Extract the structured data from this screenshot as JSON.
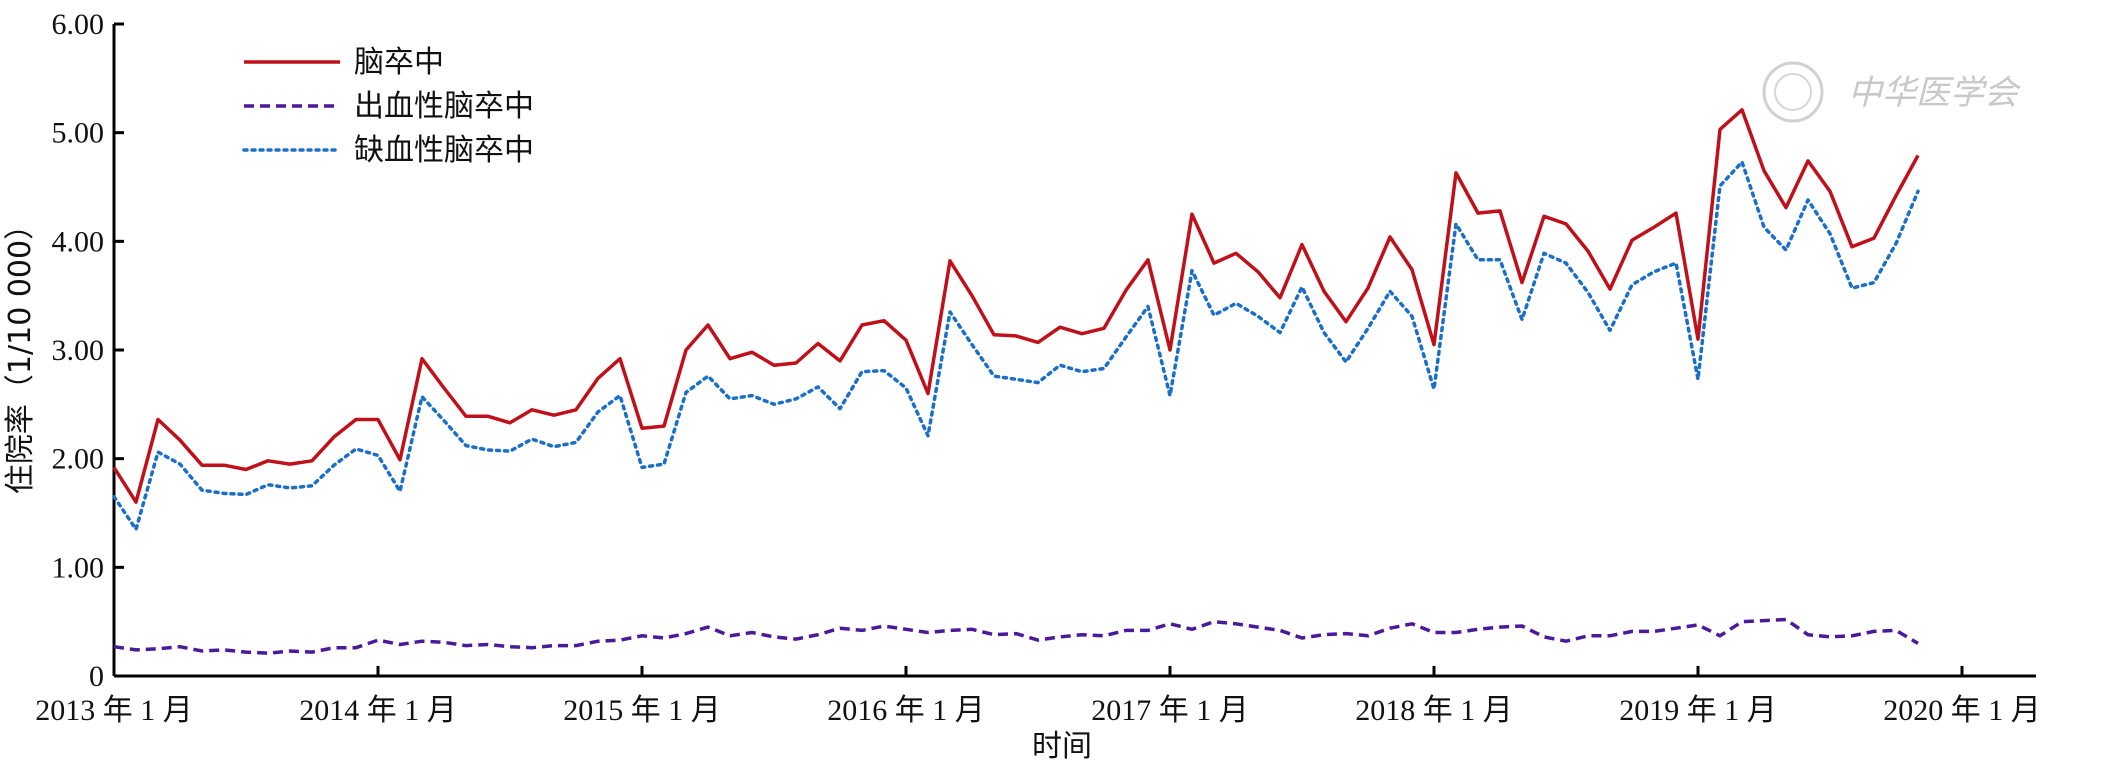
{
  "chart_data": {
    "type": "line",
    "title": "",
    "xlabel": "时间",
    "ylabel": "住院率（1/10 000）",
    "ylim": [
      0,
      6
    ],
    "yticks": [
      "0",
      "1.00",
      "2.00",
      "3.00",
      "4.00",
      "5.00",
      "6.00"
    ],
    "xticks": [
      "2013 年 1 月",
      "2014 年 1 月",
      "2015 年 1 月",
      "2016 年 1 月",
      "2017 年 1 月",
      "2018 年 1 月",
      "2019 年 1 月",
      "2020 年 1 月"
    ],
    "x_start": "2013-01",
    "x_end": "2020-01",
    "legend_position": "top-left",
    "series": [
      {
        "name": "脑卒中",
        "color": "#c0101a",
        "style": "solid",
        "values": [
          1.92,
          1.6,
          2.36,
          2.17,
          1.94,
          1.94,
          1.9,
          1.98,
          1.95,
          1.98,
          2.2,
          2.36,
          2.36,
          1.99,
          2.92,
          2.65,
          2.39,
          2.39,
          2.33,
          2.45,
          2.4,
          2.45,
          2.74,
          2.92,
          2.28,
          2.3,
          3.0,
          3.23,
          2.92,
          2.98,
          2.86,
          2.88,
          3.06,
          2.9,
          3.23,
          3.27,
          3.09,
          2.6,
          3.82,
          3.5,
          3.14,
          3.13,
          3.07,
          3.21,
          3.15,
          3.2,
          3.55,
          3.83,
          3.0,
          4.25,
          3.8,
          3.89,
          3.72,
          3.48,
          3.97,
          3.54,
          3.26,
          3.57,
          4.04,
          3.74,
          3.05,
          4.63,
          4.26,
          4.28,
          3.62,
          4.23,
          4.16,
          3.91,
          3.56,
          4.01,
          4.13,
          4.26,
          3.1,
          5.03,
          5.21,
          4.65,
          4.31,
          4.74,
          4.46,
          3.95,
          4.03,
          4.42,
          4.79
        ]
      },
      {
        "name": "出血性脑卒中",
        "color": "#4b1a9a",
        "style": "dashed",
        "values": [
          0.27,
          0.24,
          0.25,
          0.27,
          0.23,
          0.24,
          0.22,
          0.21,
          0.23,
          0.22,
          0.26,
          0.26,
          0.33,
          0.29,
          0.32,
          0.31,
          0.28,
          0.29,
          0.27,
          0.26,
          0.28,
          0.28,
          0.32,
          0.33,
          0.37,
          0.35,
          0.39,
          0.45,
          0.37,
          0.4,
          0.36,
          0.34,
          0.38,
          0.44,
          0.42,
          0.46,
          0.43,
          0.4,
          0.42,
          0.43,
          0.38,
          0.39,
          0.33,
          0.36,
          0.38,
          0.37,
          0.42,
          0.42,
          0.48,
          0.43,
          0.5,
          0.48,
          0.45,
          0.42,
          0.35,
          0.38,
          0.39,
          0.37,
          0.44,
          0.48,
          0.4,
          0.4,
          0.43,
          0.45,
          0.46,
          0.36,
          0.32,
          0.37,
          0.37,
          0.41,
          0.41,
          0.44,
          0.47,
          0.37,
          0.5,
          0.51,
          0.52,
          0.38,
          0.36,
          0.37,
          0.41,
          0.42,
          0.3
        ]
      },
      {
        "name": "缺血性脑卒中",
        "color": "#1a6fc8",
        "style": "dotted",
        "values": [
          1.65,
          1.35,
          2.06,
          1.95,
          1.71,
          1.68,
          1.67,
          1.76,
          1.73,
          1.75,
          1.94,
          2.09,
          2.03,
          1.7,
          2.57,
          2.35,
          2.12,
          2.08,
          2.07,
          2.18,
          2.11,
          2.15,
          2.43,
          2.58,
          1.92,
          1.95,
          2.61,
          2.76,
          2.55,
          2.58,
          2.5,
          2.55,
          2.66,
          2.46,
          2.8,
          2.81,
          2.65,
          2.21,
          3.35,
          3.05,
          2.76,
          2.73,
          2.7,
          2.86,
          2.8,
          2.83,
          3.12,
          3.4,
          2.58,
          3.73,
          3.32,
          3.43,
          3.31,
          3.16,
          3.58,
          3.16,
          2.89,
          3.2,
          3.54,
          3.31,
          2.64,
          4.16,
          3.83,
          3.83,
          3.28,
          3.89,
          3.8,
          3.53,
          3.18,
          3.6,
          3.72,
          3.8,
          2.73,
          4.51,
          4.73,
          4.13,
          3.92,
          4.38,
          4.07,
          3.57,
          3.62,
          3.98,
          4.46
        ]
      }
    ]
  },
  "watermark": {
    "text": "中华医学会"
  }
}
